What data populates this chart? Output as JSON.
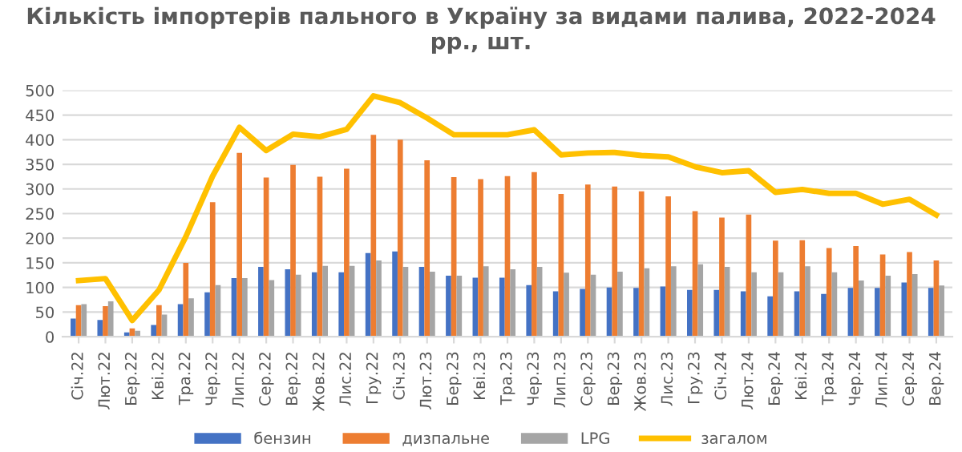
{
  "chart_data": {
    "type": "bar",
    "title": "Кількість імпортерів пального в Україну за видами палива, 2022-2024\nрр., шт.",
    "categories": [
      "Січ.22",
      "Лют.22",
      "Бер.22",
      "Кві.22",
      "Тра.22",
      "Чер.22",
      "Лип.22",
      "Сер.22",
      "Вер.22",
      "Жов.22",
      "Лис.22",
      "Гру.22",
      "Січ.23",
      "Лют.23",
      "Бер.23",
      "Кві.23",
      "Тра.23",
      "Чер.23",
      "Лип.23",
      "Сер.23",
      "Вер.23",
      "Жов.23",
      "Лис.23",
      "Гру.23",
      "Січ.24",
      "Лют.24",
      "Бер.24",
      "Кві.24",
      "Тра.24",
      "Чер.24",
      "Лип.24",
      "Сер.24",
      "Вер.24"
    ],
    "series": [
      {
        "name": "бензин",
        "color": "#4472c4",
        "values": [
          37,
          34,
          9,
          24,
          66,
          90,
          119,
          142,
          137,
          131,
          131,
          170,
          173,
          142,
          124,
          120,
          120,
          105,
          92,
          97,
          100,
          99,
          102,
          95,
          95,
          92,
          82,
          92,
          87,
          99,
          99,
          110,
          99
        ]
      },
      {
        "name": "дизпальне",
        "color": "#ed7d31",
        "values": [
          64,
          62,
          17,
          64,
          150,
          273,
          373,
          323,
          349,
          325,
          341,
          410,
          400,
          358,
          324,
          320,
          326,
          334,
          290,
          309,
          305,
          295,
          285,
          255,
          242,
          248,
          195,
          196,
          180,
          184,
          167,
          172,
          155
        ]
      },
      {
        "name": "LPG",
        "color": "#a5a5a5",
        "values": [
          66,
          72,
          12,
          45,
          78,
          105,
          119,
          115,
          126,
          144,
          144,
          155,
          142,
          132,
          124,
          143,
          137,
          142,
          130,
          126,
          132,
          139,
          143,
          147,
          142,
          131,
          131,
          143,
          131,
          114,
          124,
          127,
          104
        ]
      },
      {
        "name": "загалом",
        "type": "line",
        "color": "#ffc000",
        "values": [
          114,
          118,
          33,
          95,
          203,
          326,
          425,
          378,
          411,
          406,
          421,
          489,
          475,
          444,
          410,
          410,
          410,
          420,
          369,
          373,
          374,
          368,
          365,
          345,
          333,
          337,
          293,
          299,
          291,
          291,
          269,
          279,
          247
        ]
      }
    ],
    "ylim": [
      0,
      500
    ],
    "yticks": [
      0,
      50,
      100,
      150,
      200,
      250,
      300,
      350,
      400,
      450,
      500
    ],
    "grid": "y",
    "legend": "bottom"
  }
}
